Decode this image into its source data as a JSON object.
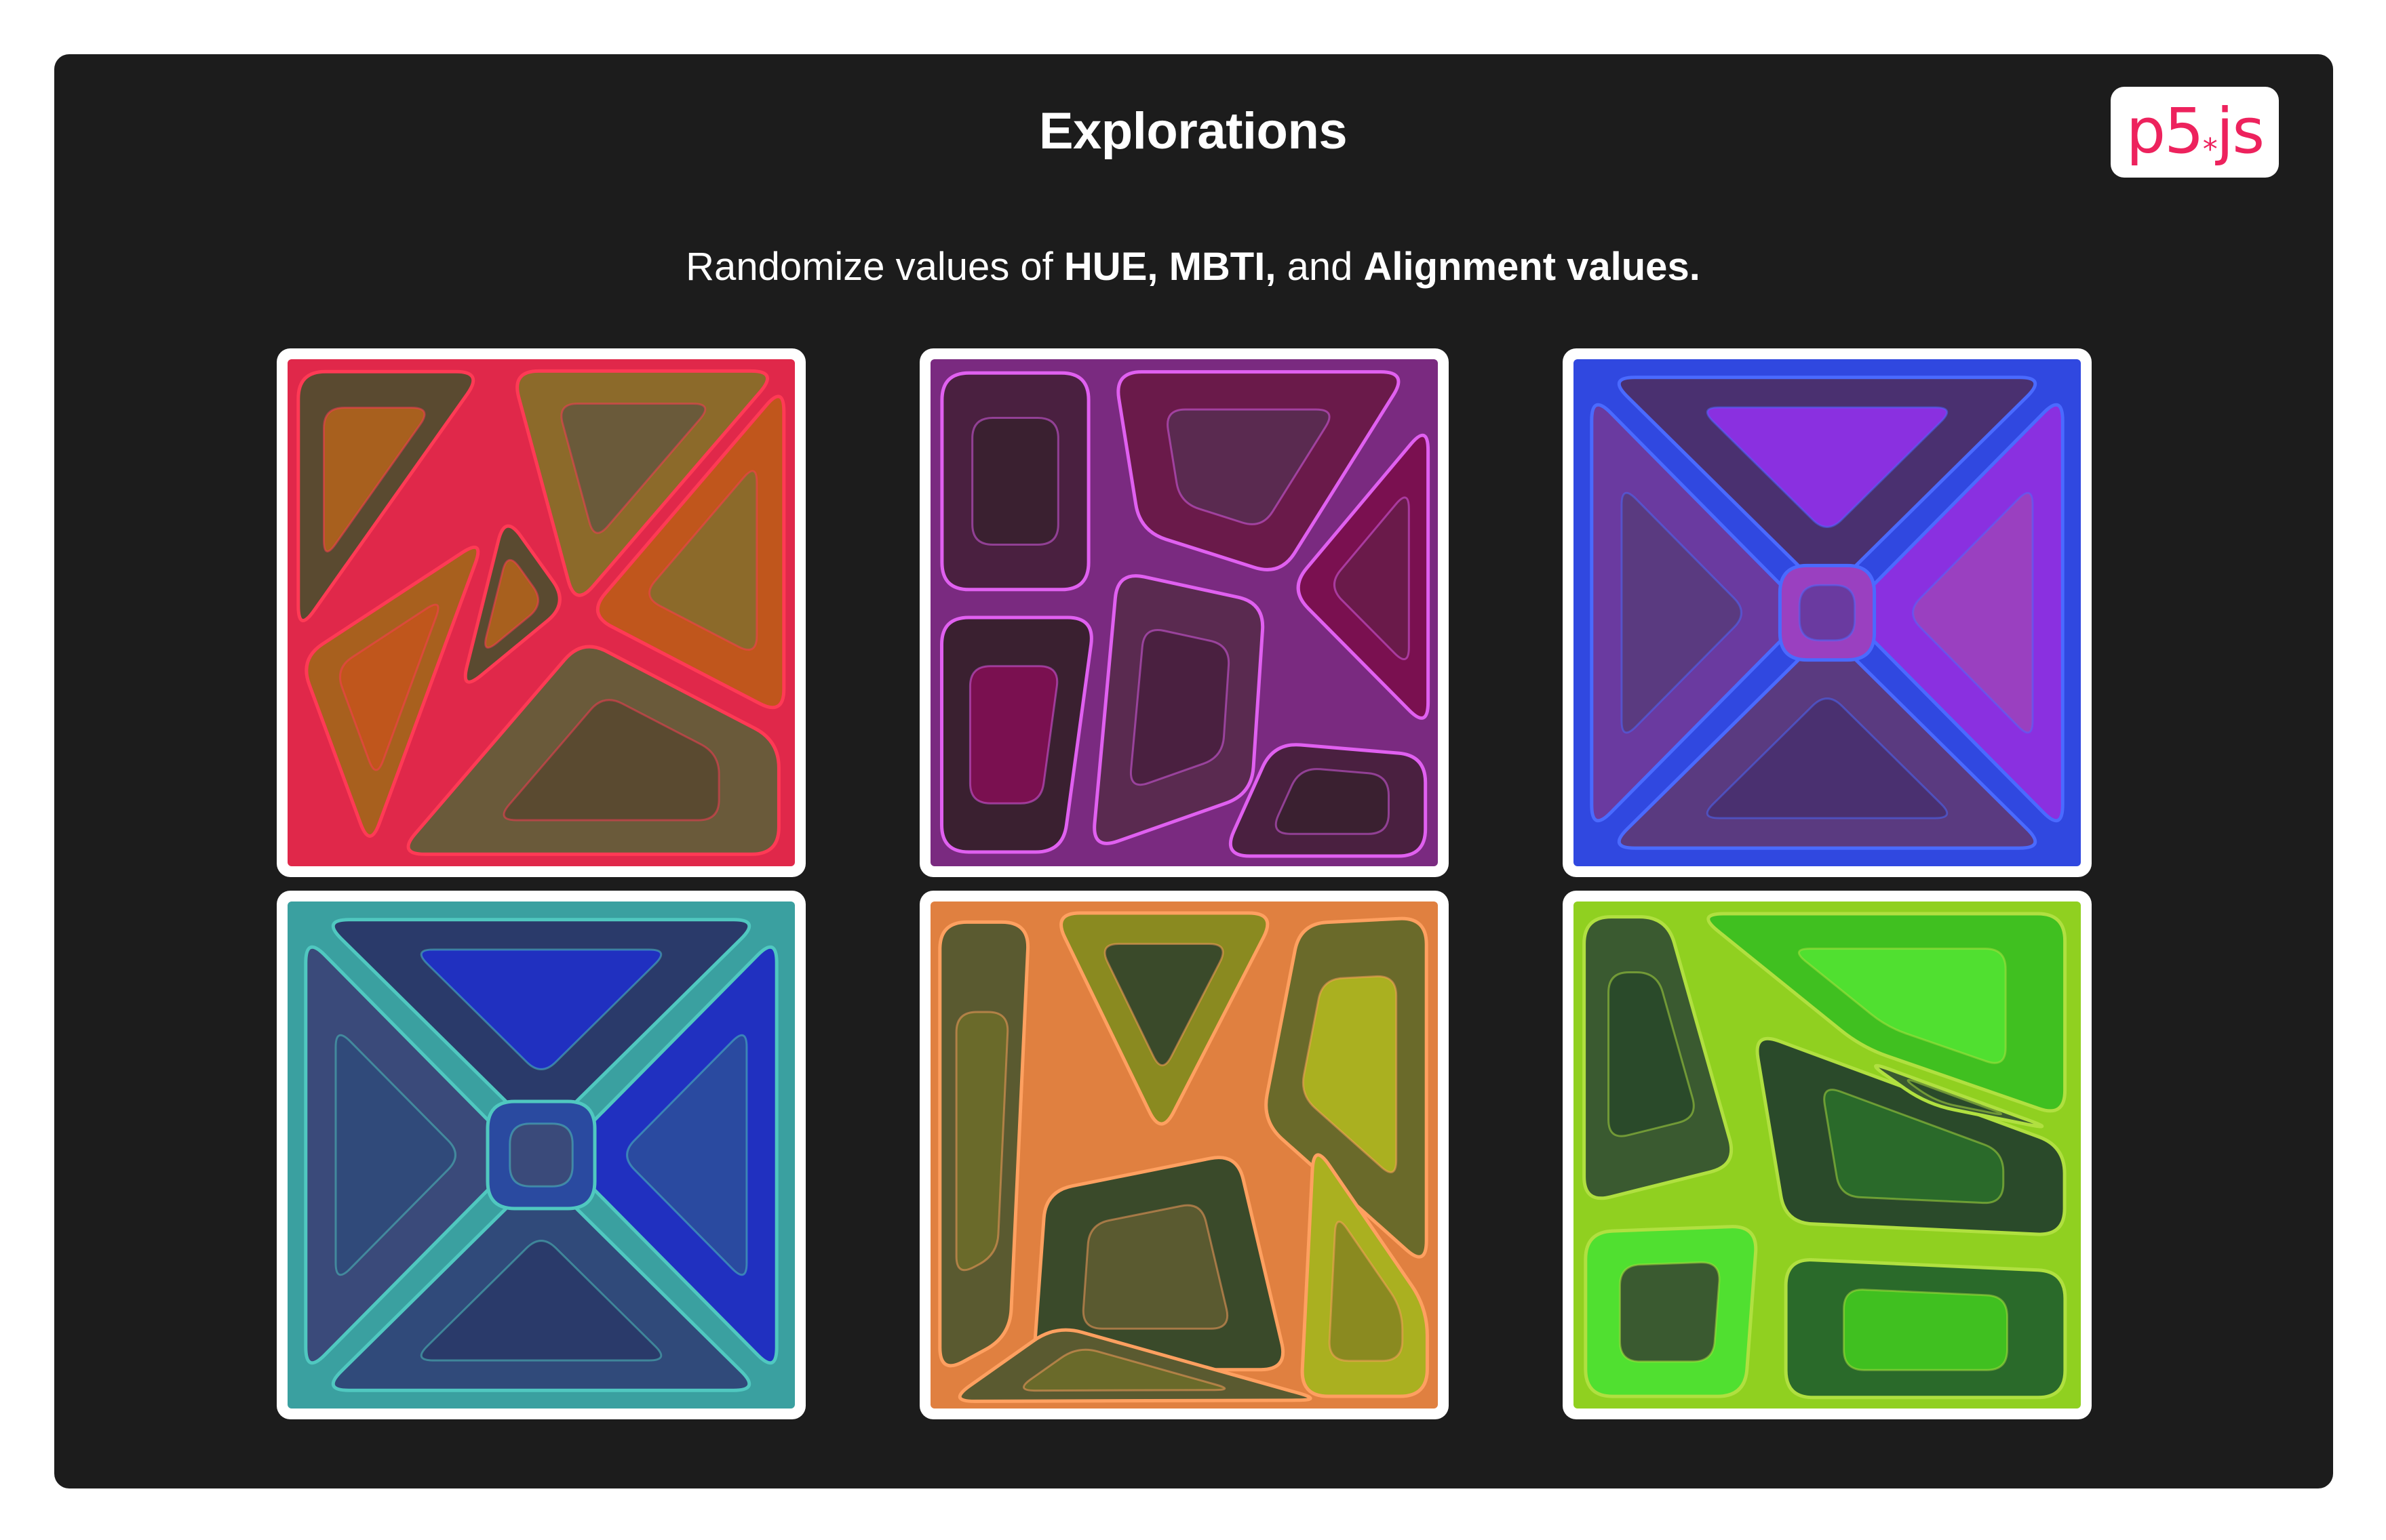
{
  "header": {
    "title": "Explorations",
    "subtitle_parts": [
      {
        "text": "Randomize values of ",
        "bold": false
      },
      {
        "text": "HUE, MBTI,",
        "bold": true
      },
      {
        "text": " and ",
        "bold": false
      },
      {
        "text": "Alignment values.",
        "bold": true
      }
    ]
  },
  "logo": {
    "text": "p5",
    "star": "*",
    "suffix": "js"
  },
  "tiles": [
    {
      "name": "red-exploration",
      "bg": "#e0284a",
      "line": "#ff3a55",
      "cells": [
        "#5a4a30",
        "#8c6a2a",
        "#a8601e",
        "#6a5a3a",
        "#c0561c"
      ]
    },
    {
      "name": "magenta-exploration",
      "bg": "#7a2a80",
      "line": "#e060f0",
      "cells": [
        "#4a2040",
        "#6a1a4a",
        "#3a2030",
        "#5a2a50",
        "#7a1050"
      ]
    },
    {
      "name": "blue-exploration",
      "bg": "#3048e0",
      "line": "#4a6aff",
      "cells": [
        "#4a3070",
        "#6a3aa0",
        "#8a30e0",
        "#5a3a80",
        "#9a40c0"
      ]
    },
    {
      "name": "teal-exploration",
      "bg": "#3aa0a0",
      "line": "#50c8c0",
      "cells": [
        "#2a3a6a",
        "#3a4a7a",
        "#2030c0",
        "#304a7a",
        "#2a4aa0"
      ]
    },
    {
      "name": "orange-exploration",
      "bg": "#e08040",
      "line": "#ffa060",
      "cells": [
        "#5a5a30",
        "#8a8a20",
        "#6a6a2a",
        "#3a4a2a",
        "#aab020"
      ]
    },
    {
      "name": "green-exploration",
      "bg": "#90d020",
      "line": "#b0e040",
      "cells": [
        "#3a5a30",
        "#40c020",
        "#2a4a2a",
        "#50e030",
        "#2a6a2a"
      ]
    }
  ]
}
